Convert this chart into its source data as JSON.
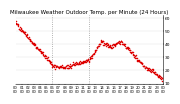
{
  "title": "Milwaukee Weather Outdoor Temp. per Minute (24 Hours)",
  "dot_color": "#dd0000",
  "bg_color": "#ffffff",
  "plot_bg": "#ffffff",
  "ylim": [
    10,
    62
  ],
  "ytick_vals": [
    10,
    20,
    30,
    40,
    50,
    60
  ],
  "ytick_labels": [
    "10",
    "20",
    "30",
    "40",
    "50",
    "60"
  ],
  "vlines_x": [
    360,
    720
  ],
  "vline_color": "#999999",
  "title_fontsize": 4.0,
  "tick_fontsize": 3.2,
  "dot_size": 1.2,
  "n_minutes": 1440
}
